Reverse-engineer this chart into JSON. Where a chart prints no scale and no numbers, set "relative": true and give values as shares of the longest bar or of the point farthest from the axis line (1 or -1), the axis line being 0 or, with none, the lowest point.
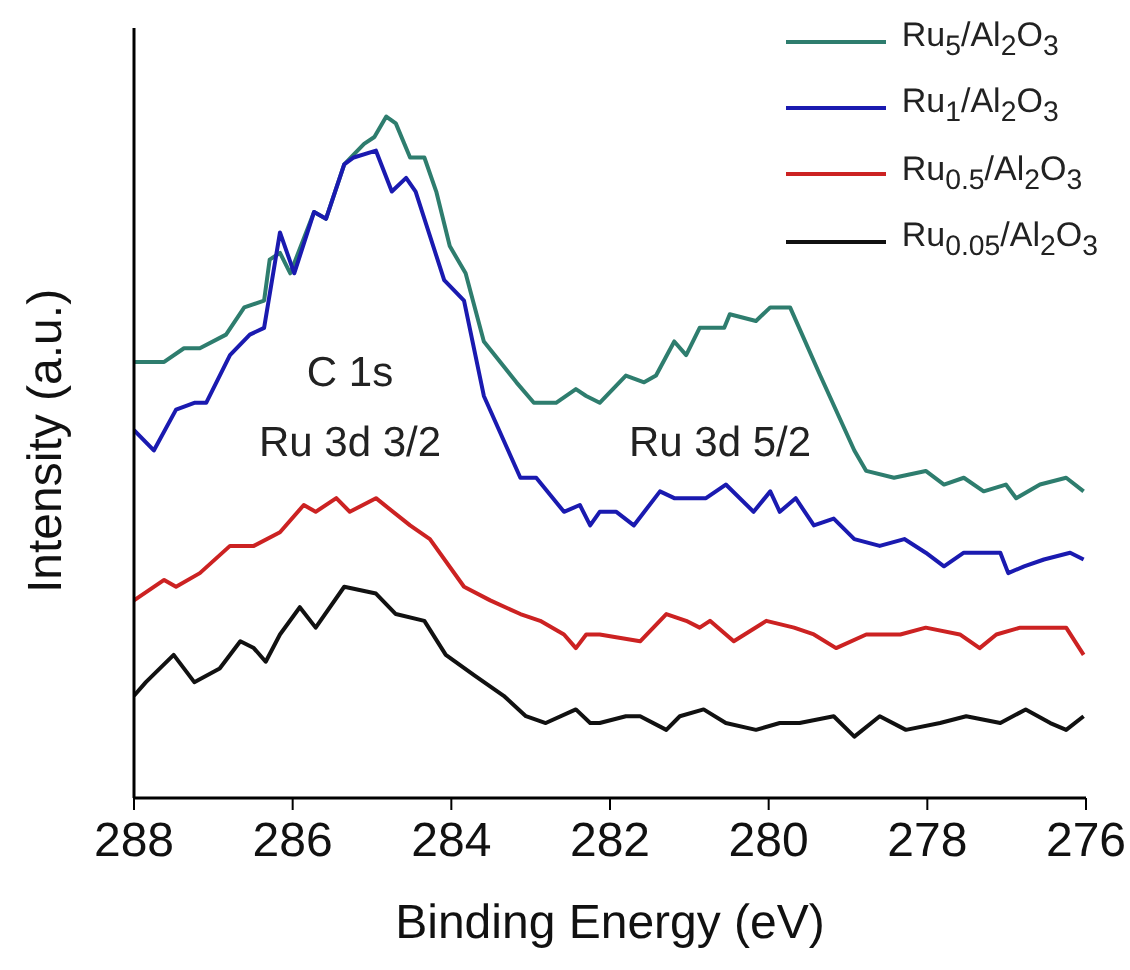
{
  "chart_data": {
    "type": "line",
    "relative": true,
    "xlabel": "Binding Energy (eV)",
    "ylabel": "Intensity (a.u.)",
    "xlim": [
      288,
      276
    ],
    "xticks": [
      288,
      286,
      284,
      282,
      280,
      278,
      276
    ],
    "legend": "top right",
    "annotations": [
      "C 1s",
      "Ru 3d 3/2",
      "Ru 3d 5/2"
    ],
    "series": [
      {
        "name": "Ru$_{5}$/Al$_{2}$O$_{3}$",
        "color": "#2e7d6e",
        "x": [
          288.0,
          287.62,
          287.37,
          287.17,
          286.84,
          286.61,
          286.36,
          286.29,
          286.16,
          286.03,
          285.73,
          285.58,
          285.35,
          285.1,
          284.97,
          284.82,
          284.7,
          284.52,
          284.34,
          284.19,
          284.02,
          283.82,
          283.59,
          283.18,
          282.96,
          282.68,
          282.43,
          282.3,
          282.13,
          281.8,
          281.57,
          281.42,
          281.19,
          281.04,
          280.87,
          280.56,
          280.49,
          280.16,
          279.98,
          279.73,
          279.35,
          278.92,
          278.77,
          278.42,
          278.02,
          277.79,
          277.54,
          277.29,
          277.01,
          276.88,
          276.58,
          276.25,
          276.03
        ],
        "values": [
          0.64,
          0.64,
          0.66,
          0.66,
          0.68,
          0.72,
          0.73,
          0.79,
          0.8,
          0.77,
          0.86,
          0.85,
          0.93,
          0.96,
          0.97,
          1.0,
          0.99,
          0.94,
          0.94,
          0.89,
          0.81,
          0.77,
          0.67,
          0.61,
          0.58,
          0.58,
          0.6,
          0.59,
          0.58,
          0.62,
          0.61,
          0.62,
          0.67,
          0.65,
          0.69,
          0.69,
          0.71,
          0.7,
          0.72,
          0.72,
          0.62,
          0.51,
          0.48,
          0.47,
          0.48,
          0.46,
          0.47,
          0.45,
          0.46,
          0.44,
          0.46,
          0.47,
          0.45
        ]
      },
      {
        "name": "Ru$_{1}$/Al$_{2}$O$_{3}$",
        "color": "#1a1ab0",
        "x": [
          288.0,
          287.75,
          287.47,
          287.24,
          287.09,
          286.79,
          286.54,
          286.36,
          286.16,
          285.98,
          285.73,
          285.58,
          285.35,
          285.23,
          284.95,
          284.75,
          284.57,
          284.45,
          284.09,
          283.84,
          283.59,
          283.13,
          282.93,
          282.58,
          282.38,
          282.25,
          282.13,
          281.92,
          281.7,
          281.37,
          281.19,
          281.04,
          280.79,
          280.54,
          280.19,
          279.98,
          279.86,
          279.66,
          279.43,
          279.18,
          278.92,
          278.6,
          278.29,
          278.02,
          277.79,
          277.54,
          277.08,
          276.98,
          276.78,
          276.53,
          276.2,
          276.03
        ],
        "values": [
          0.54,
          0.51,
          0.57,
          0.58,
          0.58,
          0.65,
          0.68,
          0.69,
          0.83,
          0.77,
          0.86,
          0.85,
          0.93,
          0.94,
          0.95,
          0.89,
          0.91,
          0.89,
          0.76,
          0.73,
          0.59,
          0.47,
          0.47,
          0.42,
          0.43,
          0.4,
          0.42,
          0.42,
          0.4,
          0.45,
          0.44,
          0.44,
          0.44,
          0.46,
          0.42,
          0.45,
          0.42,
          0.44,
          0.4,
          0.41,
          0.38,
          0.37,
          0.38,
          0.36,
          0.34,
          0.36,
          0.36,
          0.33,
          0.34,
          0.35,
          0.36,
          0.35
        ]
      },
      {
        "name": "Ru$_{0.5}$/Al$_{2}$O$_{3}$",
        "color": "#cc2222",
        "x": [
          288.0,
          287.62,
          287.47,
          287.17,
          286.79,
          286.49,
          286.16,
          285.86,
          285.71,
          285.45,
          285.28,
          284.95,
          284.52,
          284.27,
          283.84,
          283.51,
          283.13,
          282.88,
          282.58,
          282.43,
          282.3,
          282.13,
          281.62,
          281.29,
          281.04,
          280.87,
          280.74,
          280.44,
          280.03,
          279.68,
          279.43,
          279.15,
          278.77,
          278.34,
          278.02,
          277.59,
          277.34,
          277.13,
          276.83,
          276.58,
          276.25,
          276.03
        ],
        "values": [
          0.29,
          0.32,
          0.31,
          0.33,
          0.37,
          0.37,
          0.39,
          0.43,
          0.42,
          0.44,
          0.42,
          0.44,
          0.4,
          0.38,
          0.31,
          0.29,
          0.27,
          0.26,
          0.24,
          0.22,
          0.24,
          0.24,
          0.23,
          0.27,
          0.26,
          0.25,
          0.26,
          0.23,
          0.26,
          0.25,
          0.24,
          0.22,
          0.24,
          0.24,
          0.25,
          0.24,
          0.22,
          0.24,
          0.25,
          0.25,
          0.25,
          0.21
        ]
      },
      {
        "name": "Ru$_{0.05}$/Al$_{2}$O$_{3}$",
        "color": "#111111",
        "x": [
          288.0,
          287.85,
          287.5,
          287.24,
          286.92,
          286.66,
          286.49,
          286.34,
          286.16,
          285.91,
          285.71,
          285.35,
          284.95,
          284.7,
          284.34,
          284.07,
          283.71,
          283.34,
          283.06,
          282.81,
          282.43,
          282.25,
          282.13,
          281.8,
          281.62,
          281.29,
          281.12,
          280.82,
          280.54,
          280.16,
          279.86,
          279.61,
          279.18,
          278.92,
          278.6,
          278.27,
          277.84,
          277.51,
          277.08,
          276.76,
          276.45,
          276.25,
          276.03
        ],
        "values": [
          0.15,
          0.17,
          0.21,
          0.17,
          0.19,
          0.23,
          0.22,
          0.2,
          0.24,
          0.28,
          0.25,
          0.31,
          0.3,
          0.27,
          0.26,
          0.21,
          0.18,
          0.15,
          0.12,
          0.11,
          0.13,
          0.11,
          0.11,
          0.12,
          0.12,
          0.1,
          0.12,
          0.13,
          0.11,
          0.1,
          0.11,
          0.11,
          0.12,
          0.09,
          0.12,
          0.1,
          0.11,
          0.12,
          0.11,
          0.13,
          0.11,
          0.1,
          0.12
        ]
      }
    ]
  }
}
